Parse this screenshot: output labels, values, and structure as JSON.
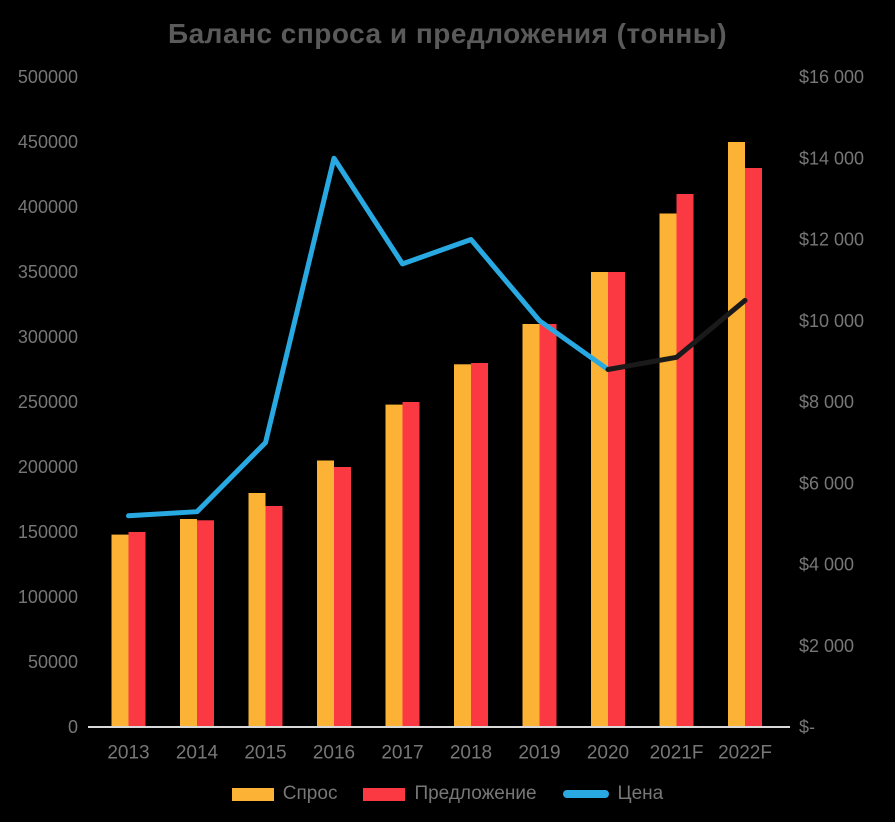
{
  "chart_data": {
    "type": "combo-bar-line",
    "title": "Баланс спроса и предложения (тонны)",
    "categories": [
      "2013",
      "2014",
      "2015",
      "2016",
      "2017",
      "2018",
      "2019",
      "2020",
      "2021F",
      "2022F"
    ],
    "series": [
      {
        "name": "Спрос",
        "type": "bar",
        "axis": "left",
        "color": "#FCB234",
        "values": [
          148000,
          160000,
          180000,
          205000,
          248000,
          279000,
          310000,
          350000,
          395000,
          450000
        ]
      },
      {
        "name": "Предложение",
        "type": "bar",
        "axis": "left",
        "color": "#FA3943",
        "values": [
          150000,
          159000,
          170000,
          200000,
          250000,
          280000,
          310000,
          350000,
          410000,
          430000
        ]
      },
      {
        "name": "Цена",
        "type": "line",
        "axis": "right",
        "color": "#29A9E1",
        "forecast_color": "#1A1A1A",
        "forecast_start_index": 7,
        "values": [
          5200,
          5300,
          7000,
          14000,
          11400,
          12000,
          10000,
          8800,
          9100,
          10500
        ]
      }
    ],
    "left_axis": {
      "min": 0,
      "max": 500000,
      "tick_step": 50000,
      "tick_labels": [
        "500000",
        "450000",
        "400000",
        "350000",
        "300000",
        "250000",
        "200000",
        "150000",
        "100000",
        "50000",
        "0"
      ]
    },
    "right_axis": {
      "min": 0,
      "max": 16000,
      "tick_step": 2000,
      "tick_labels": [
        "$16 000",
        "$14 000",
        "$12 000",
        "$10 000",
        "$8 000",
        "$6 000",
        "$4 000",
        "$2 000",
        "$-"
      ]
    },
    "legend_position": "bottom",
    "grid": "off",
    "colors": {
      "background": "#000000",
      "title_text": "#5A5A5A",
      "axis_label_text": "#777777",
      "axis_line": "#D9D9D9"
    }
  }
}
